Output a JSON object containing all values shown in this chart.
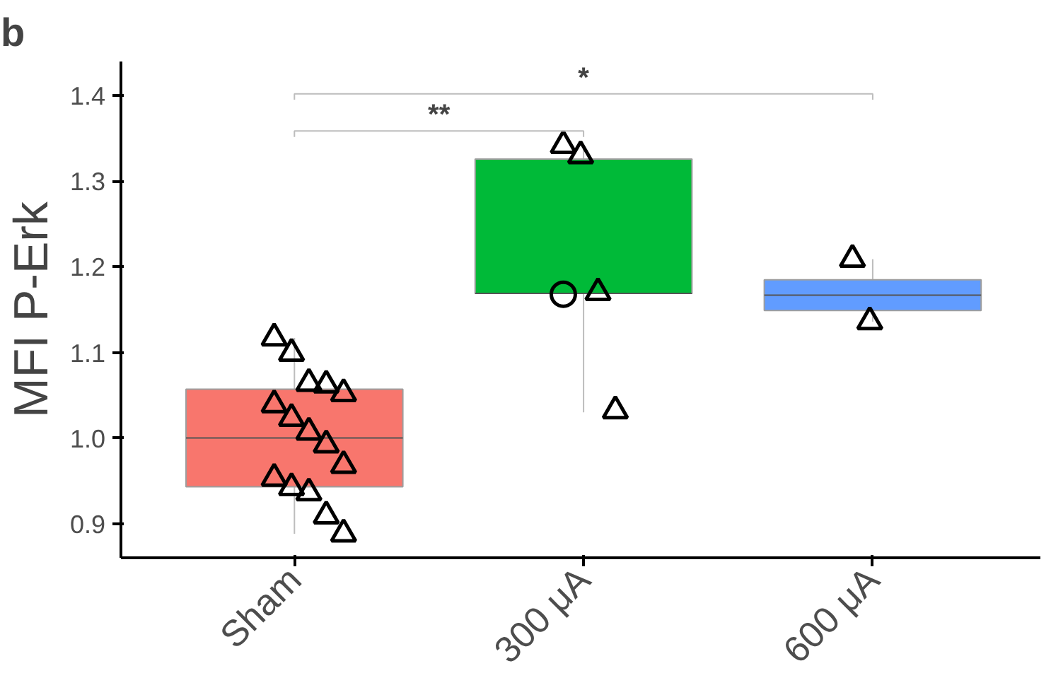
{
  "chart_data": {
    "type": "box",
    "title": "b",
    "ylabel": "MFI P-Erk",
    "categories": [
      "Sham",
      "300 μA",
      "600 μA"
    ],
    "colors": [
      "#f8766d",
      "#00ba38",
      "#619cff"
    ],
    "boxes": [
      {
        "low": 0.888,
        "q1": 0.943,
        "median": 1.0,
        "q3": 1.057,
        "high": 1.117
      },
      {
        "low": 1.03,
        "q1": 1.169,
        "median": 1.169,
        "q3": 1.326,
        "high": 1.342
      },
      {
        "low": 1.136,
        "q1": 1.149,
        "median": 1.167,
        "q3": 1.185,
        "high": 1.209
      }
    ],
    "series": [
      {
        "type": "scatter",
        "marker": "triangle",
        "color": "#000000",
        "x": [
          "Sham",
          "Sham",
          "Sham",
          "Sham",
          "Sham",
          "Sham",
          "Sham",
          "Sham",
          "Sham",
          "Sham",
          "Sham",
          "Sham",
          "Sham",
          "Sham",
          "Sham",
          "300 μA",
          "300 μA",
          "300 μA",
          "300 μA",
          "600 μA",
          "600 μA"
        ],
        "values": [
          1.117,
          1.099,
          1.064,
          1.062,
          1.052,
          1.039,
          1.023,
          1.007,
          0.992,
          0.968,
          0.953,
          0.942,
          0.936,
          0.909,
          0.888,
          1.342,
          1.33,
          1.17,
          1.032,
          1.209,
          1.136
        ]
      },
      {
        "type": "scatter",
        "marker": "circle",
        "color": "#000000",
        "x": [
          "300 μA"
        ],
        "values": [
          1.168
        ]
      }
    ],
    "annotations": [
      "**",
      "*"
    ],
    "ylim": [
      0.86,
      1.44
    ],
    "yticks": [
      {
        "value": 0.9,
        "label": "0.9"
      },
      {
        "value": 1.0,
        "label": "1.0"
      },
      {
        "value": 1.1,
        "label": "1.1"
      },
      {
        "value": 1.2,
        "label": "1.2"
      },
      {
        "value": 1.3,
        "label": "1.3"
      },
      {
        "value": 1.4,
        "label": "1.4"
      }
    ],
    "grid": false
  }
}
